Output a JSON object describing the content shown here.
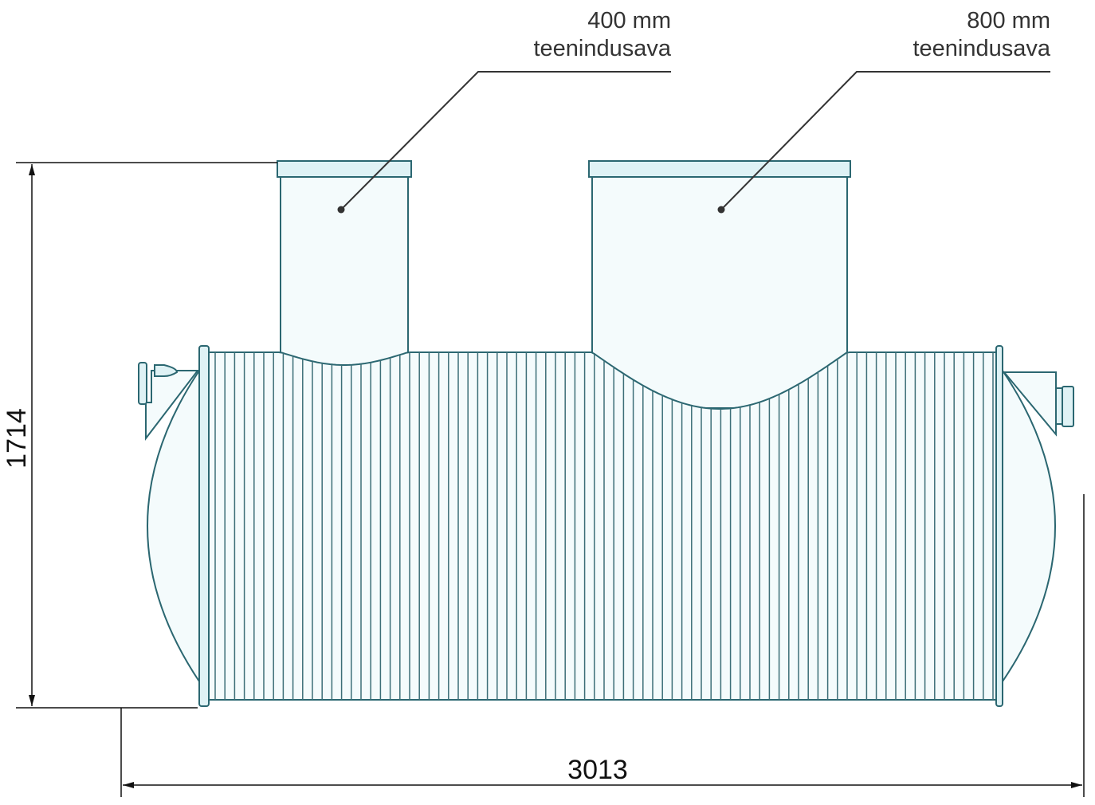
{
  "labels": [
    {
      "size": "400 mm",
      "name": "teenindusava"
    },
    {
      "size": "800 mm",
      "name": "teenindusava"
    }
  ],
  "dimensions": {
    "height": "1714",
    "length": "3013"
  },
  "colors": {
    "stroke": "#2b6771",
    "fill": "#f4fbfc",
    "dimension": "#111111"
  }
}
